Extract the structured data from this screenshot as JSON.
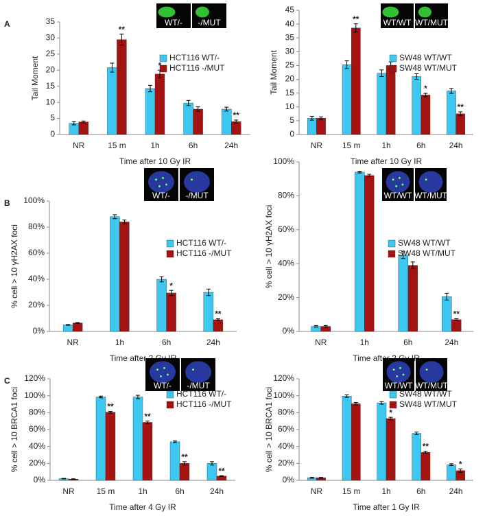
{
  "chart_data": [
    {
      "type": "bar",
      "panel": "A",
      "ylabel": "Tail Moment",
      "xlabel": "Time after 10 Gy IR",
      "inset_labels": [
        "WT/-",
        "-/MUT"
      ],
      "categories": [
        "NR",
        "15 m",
        "1h",
        "6h",
        "24h"
      ],
      "ylim": [
        0,
        35
      ],
      "yticks": [
        0,
        5,
        10,
        15,
        20,
        25,
        30,
        35
      ],
      "series": [
        {
          "name": "HCT116 WT/-",
          "color": "#3cc8f0",
          "values": [
            3.5,
            20.8,
            14.3,
            9.8,
            7.9
          ],
          "errors": [
            0.5,
            1.4,
            1.0,
            0.8,
            0.6
          ],
          "stars": [
            null,
            null,
            null,
            null,
            null
          ]
        },
        {
          "name": "HCT116 -/MUT",
          "color": "#a51212",
          "values": [
            3.9,
            29.5,
            18.8,
            7.9,
            4.0
          ],
          "errors": [
            0.3,
            1.7,
            1.2,
            0.7,
            0.5
          ],
          "stars": [
            null,
            "**",
            "*",
            null,
            "**"
          ]
        }
      ]
    },
    {
      "type": "bar",
      "ylabel": "Tail Moment",
      "xlabel": "Time after 10 Gy IR",
      "inset_labels": [
        "WT/WT",
        "WT/MUT"
      ],
      "categories": [
        "NR",
        "15 m",
        "1h",
        "6h",
        "24h"
      ],
      "ylim": [
        0,
        45
      ],
      "yticks": [
        0,
        5,
        10,
        15,
        20,
        25,
        30,
        35,
        40,
        45
      ],
      "series": [
        {
          "name": "SW48 WT/WT",
          "color": "#3cc8f0",
          "values": [
            5.9,
            25.3,
            22.2,
            21.0,
            15.8
          ],
          "errors": [
            0.7,
            1.4,
            1.2,
            1.0,
            0.9
          ],
          "stars": [
            null,
            null,
            null,
            null,
            null
          ]
        },
        {
          "name": "SW48 WT/MUT",
          "color": "#a51212",
          "values": [
            5.9,
            38.6,
            25.0,
            14.3,
            7.5
          ],
          "errors": [
            0.5,
            1.5,
            1.3,
            0.6,
            0.7
          ],
          "stars": [
            null,
            "**",
            null,
            "*",
            "**"
          ]
        }
      ]
    },
    {
      "type": "bar",
      "panel": "B",
      "ylabel": "% cell > 10 γH2AX foci",
      "xlabel": "Time after 2 Gy IR",
      "inset_labels": [
        "WT/-",
        "-/MUT"
      ],
      "categories": [
        "NR",
        "1h",
        "6h",
        "24h"
      ],
      "ylim": [
        0,
        100
      ],
      "yticks": [
        {
          "value": 0,
          "label": "0%"
        },
        {
          "value": 20,
          "label": "20%"
        },
        {
          "value": 40,
          "label": "40%"
        },
        {
          "value": 60,
          "label": "60%"
        },
        {
          "value": 80,
          "label": "80%"
        },
        {
          "value": 100,
          "label": "100%"
        }
      ],
      "series": [
        {
          "name": "HCT116 WT/-",
          "color": "#3cc8f0",
          "values": [
            5,
            88,
            40,
            30
          ],
          "errors": [
            0.3,
            1.5,
            2,
            2.5
          ],
          "stars": [
            null,
            null,
            null,
            null
          ]
        },
        {
          "name": "HCT116 -/MUT",
          "color": "#a51212",
          "values": [
            6.5,
            84,
            29.5,
            9
          ],
          "errors": [
            0.3,
            1.5,
            2,
            0.7
          ],
          "stars": [
            null,
            null,
            "*",
            "**"
          ]
        }
      ]
    },
    {
      "type": "bar",
      "ylabel": "% cell > 10 γH2AX foci",
      "xlabel": "Time after 2 Gy IR",
      "inset_labels": [
        "WT/WT",
        "WT/MUT"
      ],
      "categories": [
        "NR",
        "1h",
        "6h",
        "24h"
      ],
      "ylim": [
        0,
        100
      ],
      "yticks": [
        {
          "value": 0,
          "label": "0%"
        },
        {
          "value": 20,
          "label": "20%"
        },
        {
          "value": 40,
          "label": "40%"
        },
        {
          "value": 60,
          "label": "60%"
        },
        {
          "value": 80,
          "label": "80%"
        },
        {
          "value": 100,
          "label": "100%"
        }
      ],
      "series": [
        {
          "name": "SW48 WT/WT",
          "color": "#3cc8f0",
          "values": [
            3,
            94,
            45,
            20.5
          ],
          "errors": [
            0.5,
            0.5,
            2,
            2
          ],
          "stars": [
            null,
            null,
            null,
            null
          ]
        },
        {
          "name": "SW48 WT/MUT",
          "color": "#a51212",
          "values": [
            3,
            92,
            39,
            7
          ],
          "errors": [
            0.5,
            0.7,
            2,
            0.5
          ],
          "stars": [
            null,
            null,
            null,
            "**"
          ]
        }
      ]
    },
    {
      "type": "bar",
      "panel": "C",
      "ylabel": "% cell > 10 BRCA1 foci",
      "xlabel": "Time after 4 Gy IR",
      "inset_labels": [
        "WT/-",
        "-/MUT"
      ],
      "categories": [
        "NR",
        "15 m",
        "1h",
        "6h",
        "24h"
      ],
      "ylim": [
        0,
        120
      ],
      "yticks": [
        {
          "value": 0,
          "label": "0%"
        },
        {
          "value": 20,
          "label": "20%"
        },
        {
          "value": 40,
          "label": "40%"
        },
        {
          "value": 60,
          "label": "60%"
        },
        {
          "value": 80,
          "label": "80%"
        },
        {
          "value": 100,
          "label": "100%"
        },
        {
          "value": 120,
          "label": "120%"
        }
      ],
      "series": [
        {
          "name": "HCT116 WT/-",
          "color": "#3cc8f0",
          "values": [
            2,
            98.5,
            98.5,
            45.5,
            20
          ],
          "errors": [
            0.3,
            1,
            2,
            1,
            2
          ],
          "stars": [
            null,
            null,
            null,
            null,
            null
          ]
        },
        {
          "name": "HCT116 -/MUT",
          "color": "#a51212",
          "values": [
            1.5,
            80.5,
            68.5,
            20,
            5
          ],
          "errors": [
            0.3,
            1,
            1.5,
            2,
            0.5
          ],
          "stars": [
            null,
            "**",
            "**",
            "**",
            "**"
          ]
        }
      ]
    },
    {
      "type": "bar",
      "ylabel": "% cell > 10  BRCA1 foci",
      "xlabel": "Time after 1 Gy IR",
      "inset_labels": [
        "WT/WT",
        "WT/MUT"
      ],
      "categories": [
        "NR",
        "15 m",
        "1h",
        "6h",
        "24h"
      ],
      "ylim": [
        0,
        120
      ],
      "yticks": [
        {
          "value": 0,
          "label": "0%"
        },
        {
          "value": 20,
          "label": "20%"
        },
        {
          "value": 40,
          "label": "40%"
        },
        {
          "value": 60,
          "label": "60%"
        },
        {
          "value": 80,
          "label": "80%"
        },
        {
          "value": 100,
          "label": "100%"
        },
        {
          "value": 120,
          "label": "120%"
        }
      ],
      "series": [
        {
          "name": "SW48 WT/WT",
          "color": "#3cc8f0",
          "values": [
            3,
            99.5,
            91.5,
            55.5,
            18.5
          ],
          "errors": [
            0.5,
            1.5,
            1.5,
            1.5,
            1
          ],
          "stars": [
            null,
            null,
            null,
            null,
            null
          ]
        },
        {
          "name": "SW48 WT/MUT",
          "color": "#a51212",
          "values": [
            3,
            90.5,
            73,
            33,
            11.5
          ],
          "errors": [
            0.5,
            1.5,
            1.5,
            1.5,
            2
          ],
          "stars": [
            null,
            null,
            "*",
            "**",
            "*"
          ]
        }
      ]
    }
  ]
}
